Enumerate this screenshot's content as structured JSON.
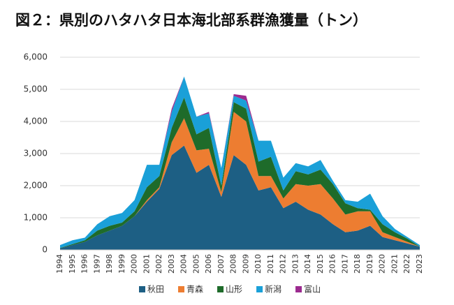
{
  "chart_data": {
    "type": "stacked_area",
    "title": "図２：県別のハタハタ日本海北部系群漁獲量（トン）",
    "categories": [
      "1994",
      "1995",
      "1996",
      "1997",
      "1998",
      "1999",
      "2000",
      "2001",
      "2002",
      "2003",
      "2004",
      "2005",
      "2006",
      "2007",
      "2008",
      "2009",
      "2010",
      "2011",
      "2012",
      "2013",
      "2014",
      "2015",
      "2016",
      "2017",
      "2018",
      "2019",
      "2020",
      "2021",
      "2022",
      "2023"
    ],
    "series": [
      {
        "name": "秋田",
        "color": "#1d5f84",
        "values": [
          50,
          150,
          250,
          450,
          600,
          750,
          1050,
          1500,
          1900,
          2950,
          3250,
          2400,
          2650,
          1650,
          2950,
          2650,
          1850,
          1950,
          1300,
          1500,
          1250,
          1100,
          800,
          550,
          600,
          750,
          400,
          300,
          200,
          100
        ]
      },
      {
        "name": "青森",
        "color": "#ed7d31",
        "values": [
          0,
          0,
          0,
          0,
          0,
          0,
          0,
          50,
          50,
          400,
          850,
          700,
          500,
          150,
          1350,
          1350,
          450,
          350,
          300,
          550,
          750,
          950,
          800,
          550,
          600,
          450,
          150,
          100,
          50,
          0
        ]
      },
      {
        "name": "山形",
        "color": "#1e6b2a",
        "values": [
          10,
          30,
          50,
          150,
          150,
          100,
          150,
          400,
          350,
          450,
          650,
          500,
          650,
          200,
          300,
          400,
          450,
          600,
          250,
          400,
          350,
          450,
          450,
          350,
          100,
          50,
          250,
          150,
          100,
          0
        ]
      },
      {
        "name": "新潟",
        "color": "#1aa0d8",
        "values": [
          90,
          120,
          80,
          200,
          300,
          300,
          350,
          700,
          350,
          500,
          650,
          550,
          450,
          550,
          200,
          250,
          650,
          500,
          400,
          250,
          250,
          300,
          100,
          100,
          200,
          500,
          250,
          100,
          50,
          50
        ]
      },
      {
        "name": "富山",
        "color": "#9b2a8f",
        "values": [
          0,
          0,
          0,
          0,
          0,
          0,
          0,
          0,
          0,
          100,
          0,
          0,
          50,
          0,
          50,
          150,
          0,
          0,
          0,
          0,
          0,
          0,
          0,
          0,
          0,
          0,
          0,
          0,
          0,
          0
        ]
      }
    ],
    "ylim": [
      0,
      6000
    ],
    "yticks": [
      0,
      {
        "value": 1000,
        "label": "1,000"
      },
      {
        "value": 2000,
        "label": "2,000"
      },
      {
        "value": 3000,
        "label": "3,000"
      },
      {
        "value": 4000,
        "label": "4,000"
      },
      {
        "value": 5000,
        "label": "5,000"
      },
      {
        "value": 6000,
        "label": "6,000"
      }
    ],
    "grid": true,
    "legend": "bottom"
  }
}
